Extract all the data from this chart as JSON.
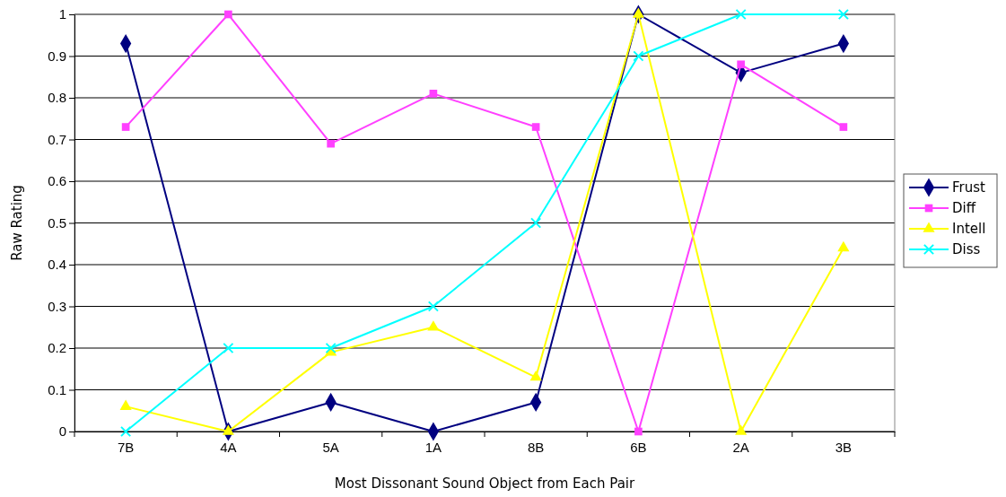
{
  "chart_data": {
    "type": "line",
    "xlabel": "Most Dissonant Sound Object from Each Pair",
    "ylabel": "Raw Rating",
    "categories": [
      "7B",
      "4A",
      "5A",
      "1A",
      "8B",
      "6B",
      "2A",
      "3B"
    ],
    "series": [
      {
        "name": "Frust",
        "color": "#000080",
        "marker": "diamond",
        "values": [
          0.93,
          0,
          0.07,
          0,
          0.07,
          1,
          0.86,
          0.93
        ]
      },
      {
        "name": "Diff",
        "color": "#ff40ff",
        "marker": "square",
        "values": [
          0.73,
          1,
          0.69,
          0.81,
          0.73,
          0,
          0.88,
          0.73
        ]
      },
      {
        "name": "Intell",
        "color": "#ffff00",
        "marker": "triangle",
        "values": [
          0.06,
          0,
          0.19,
          0.25,
          0.13,
          1,
          0,
          0.44
        ]
      },
      {
        "name": "Diss",
        "color": "#00ffff",
        "marker": "cross",
        "values": [
          0,
          0.2,
          0.2,
          0.3,
          0.5,
          0.9,
          1,
          1
        ]
      }
    ],
    "ylim": [
      0,
      1
    ],
    "yticks": [
      0,
      0.1,
      0.2,
      0.3,
      0.4,
      0.5,
      0.6,
      0.7,
      0.8,
      0.9,
      1
    ],
    "grid": "y",
    "legend": "right",
    "line_style": "solid"
  }
}
